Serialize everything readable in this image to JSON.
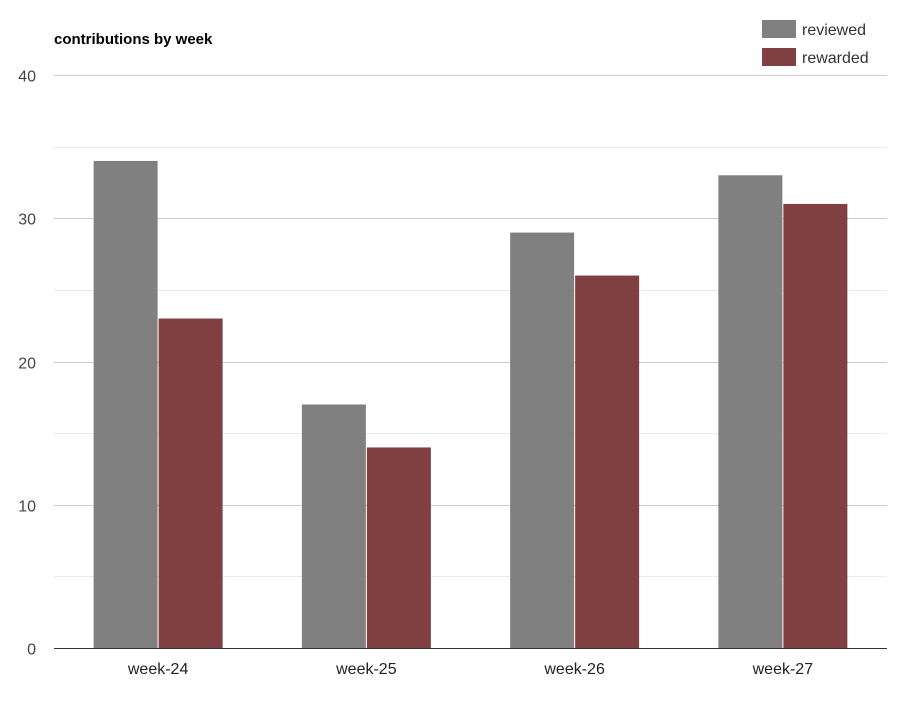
{
  "chart_data": {
    "type": "bar",
    "title": "contributions by week",
    "xlabel": "",
    "ylabel": "",
    "categories": [
      "week-24",
      "week-25",
      "week-26",
      "week-27"
    ],
    "series": [
      {
        "name": "reviewed",
        "color": "#808080",
        "values": [
          34,
          17,
          29,
          33
        ]
      },
      {
        "name": "rewarded",
        "color": "#803f40",
        "values": [
          23,
          14,
          26,
          31
        ]
      }
    ],
    "ylim": [
      0,
      40
    ],
    "yticks": [
      "0",
      "10",
      "20",
      "30",
      "40"
    ],
    "grid": true,
    "legend": "top-right"
  }
}
